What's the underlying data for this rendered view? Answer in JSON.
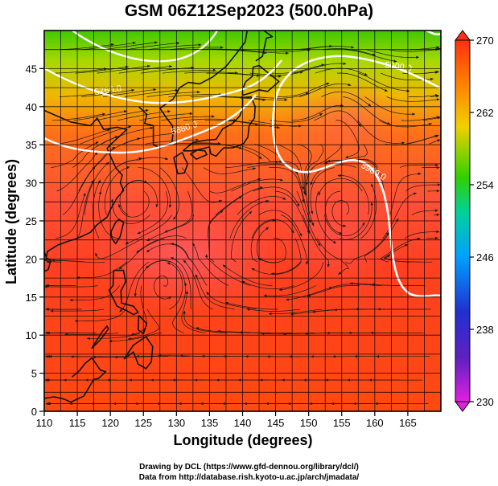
{
  "title": "GSM 06Z12Sep2023 (500.0hPa)",
  "x_axis": {
    "label": "Longitude (degrees)",
    "ticks": [
      "110",
      "115",
      "120",
      "125",
      "130",
      "135",
      "140",
      "145",
      "150",
      "155",
      "160",
      "165"
    ],
    "range": [
      110,
      170
    ]
  },
  "y_axis": {
    "label": "Latitude (degrees)",
    "ticks": [
      "0",
      "5",
      "10",
      "15",
      "20",
      "25",
      "30",
      "35",
      "40",
      "45"
    ],
    "range": [
      0,
      50
    ]
  },
  "colorbar": {
    "ticks": [
      "230",
      "238",
      "246",
      "254",
      "262",
      "270"
    ],
    "range": [
      230,
      270
    ],
    "colors": [
      "#e020e0",
      "#2020c0",
      "#00a0ff",
      "#00d0a0",
      "#30d000",
      "#f0d000",
      "#ff8000",
      "#ff3010"
    ]
  },
  "contours": [
    {
      "label": "5760.0"
    },
    {
      "label": "5880.0"
    },
    {
      "label": "5900.0"
    },
    {
      "label": "5900.0"
    }
  ],
  "credits": {
    "line1": "Drawing by DCL (https://www.gfd-dennou.org/library/dcl/)",
    "line2": "Data from http://database.rish.kyoto-u.ac.jp/arch/jmadata/"
  }
}
